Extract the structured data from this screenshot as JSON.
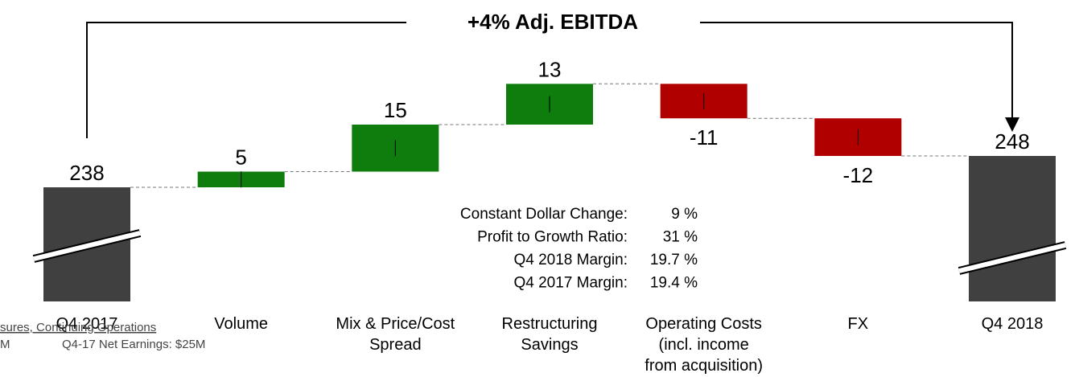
{
  "chart_data": {
    "type": "waterfall",
    "title": "+4% Adj. EBITDA",
    "categories": [
      [
        "Q4 2017"
      ],
      [
        "Volume"
      ],
      [
        "Mix & Price/Cost",
        "Spread"
      ],
      [
        "Restructuring",
        "Savings"
      ],
      [
        "Operating Costs",
        "(incl. income",
        "from acquisition)"
      ],
      [
        "FX"
      ],
      [
        "Q4 2018"
      ]
    ],
    "values": [
      238,
      5,
      15,
      13,
      -11,
      -12,
      248
    ],
    "colors": {
      "total": "#404040",
      "increase": "#0e7d0e",
      "decrease": "#b00000"
    },
    "annotations": [
      {
        "label": "Constant Dollar Change:",
        "value": "9 %"
      },
      {
        "label": "Profit to Growth Ratio:",
        "value": "31 %"
      },
      {
        "label": "Q4 2018 Margin:",
        "value": "19.7 %"
      },
      {
        "label": "Q4 2017 Margin:",
        "value": "19.4 %"
      }
    ],
    "footnotes": [
      "sures, Continuing Operations",
      "M",
      "Q4-17 Net Earnings: $25M"
    ]
  }
}
